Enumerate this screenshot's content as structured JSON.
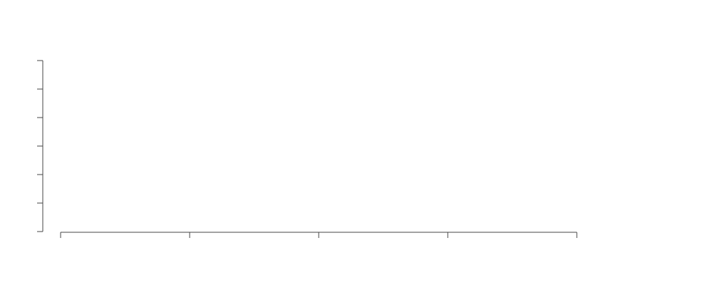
{
  "chart_data": {
    "type": "line",
    "title": "",
    "xlabel": "",
    "ylabel": "",
    "x_tick_count": 5,
    "y_tick_count": 7,
    "x_tick_labels": [],
    "y_tick_labels": [],
    "series": [],
    "grid": false,
    "legend": "none"
  },
  "colors": {
    "axis": "#444444",
    "background": "#ffffff"
  }
}
